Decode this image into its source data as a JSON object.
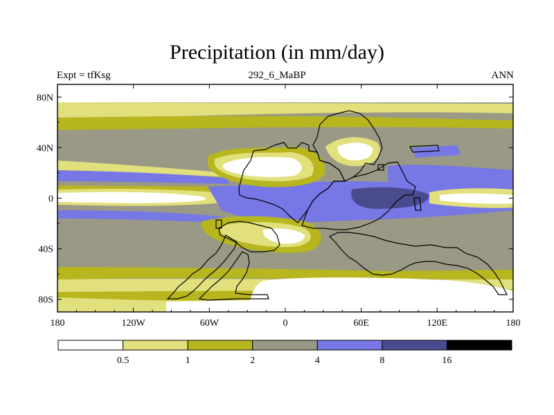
{
  "title": "Precipitation (in mm/day)",
  "left_label": "Expt = tfKsg",
  "center_label": "292_6_MaBP",
  "right_label": "ANN",
  "lon_ticks": [
    "180",
    "120W",
    "60W",
    "0",
    "60E",
    "120E",
    "180"
  ],
  "lat_ticks": [
    "80N",
    "40N",
    "0",
    "40S",
    "80S"
  ],
  "colorbar": {
    "colors": [
      "#ffffff",
      "#e1e07c",
      "#b7b61e",
      "#999986",
      "#7777e6",
      "#4a4a8f",
      "#000000"
    ],
    "labels": [
      "0.5",
      "1",
      "2",
      "4",
      "8",
      "16"
    ]
  },
  "chart_data": {
    "type": "map",
    "title": "Precipitation (in mm/day)",
    "variable": "Precipitation",
    "units": "mm/day",
    "experiment": "tfKsg",
    "period": "292_6_MaBP",
    "season": "ANN",
    "lon_range": [
      -180,
      180
    ],
    "lat_range": [
      -90,
      90
    ],
    "contour_levels": [
      0.5,
      1,
      2,
      4,
      8,
      16
    ]
  }
}
